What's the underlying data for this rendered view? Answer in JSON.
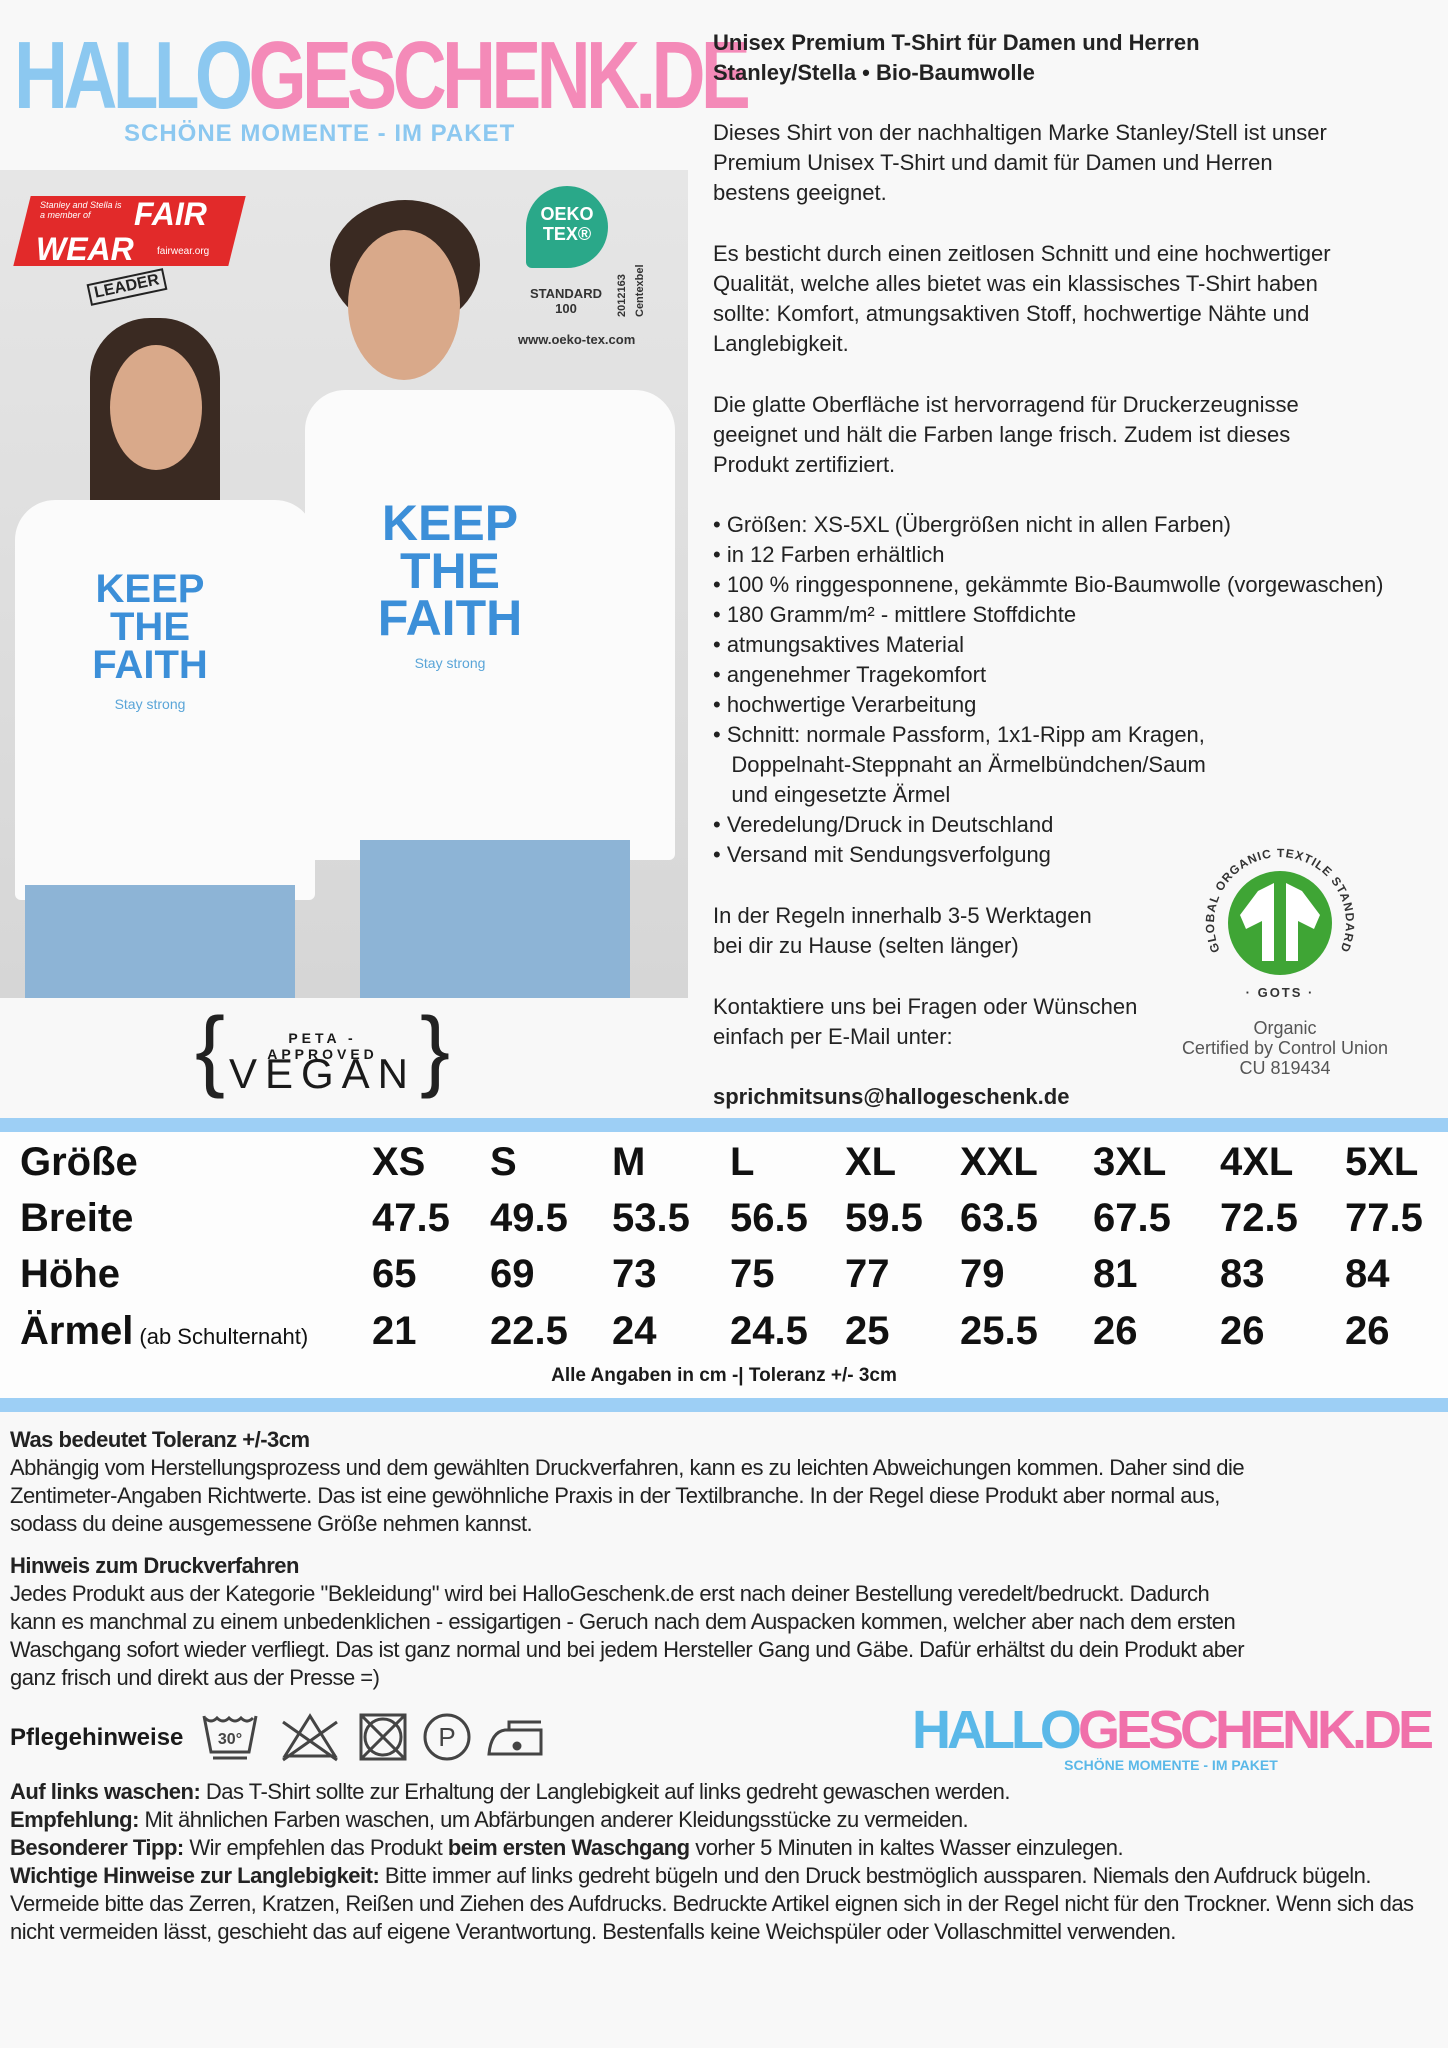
{
  "logo": {
    "part1": "HALLO",
    "part2": "GESCHENK.DE",
    "tagline": "SCHÖNE MOMENTE - IM PAKET"
  },
  "photo": {
    "fairwear": {
      "small": "Stanley and Stella is a member of",
      "fair": "FAIR",
      "wear": "WEAR",
      "url": "fairwear.org",
      "leader": "LEADER"
    },
    "oekotex": {
      "name": "OEKO TEX®",
      "standard": "STANDARD 100",
      "number": "2012163",
      "institute": "Centexbel",
      "url": "www.oeko-tex.com"
    },
    "shirt_print": {
      "line1": "KEEP",
      "line2": "THE",
      "line3": "FAITH",
      "sub": "Stay strong"
    }
  },
  "peta": {
    "top": "PETA - APPROVED",
    "main": "VEGAN"
  },
  "product": {
    "title1": "Unisex Premium T-Shirt für Damen und Herren",
    "title2": "Stanley/Stella  • Bio-Baumwolle",
    "p1": [
      "Dieses Shirt von der nachhaltigen Marke Stanley/Stell ist unser",
      "Premium Unisex T-Shirt und damit für Damen und Herren",
      "bestens geeignet."
    ],
    "p2": [
      "Es besticht durch einen zeitlosen Schnitt und eine hochwertiger",
      "Qualität, welche alles bietet was ein klassisches T-Shirt haben",
      "sollte: Komfort, atmungsaktiven Stoff, hochwertige Nähte und",
      "Langlebigkeit."
    ],
    "p3": [
      "Die glatte Oberfläche ist hervorragend für Druckerzeugnisse",
      "geeignet und hält die Farben lange frisch. Zudem ist dieses",
      "Produkt zertifiziert."
    ],
    "bullets": [
      "• Größen: XS-5XL (Übergrößen nicht in allen Farben)",
      "• in 12 Farben erhältlich",
      "• 100 % ringgesponnene, gekämmte Bio-Baumwolle (vorgewaschen)",
      "• 180 Gramm/m² - mittlere Stoffdichte",
      "• atmungsaktives Material",
      "• angenehmer Tragekomfort",
      "• hochwertige Verarbeitung",
      "• Schnitt: normale Passform, 1x1-Ripp am Kragen,",
      "   Doppelnaht-Steppnaht an Ärmelbündchen/Saum",
      "   und eingesetzte Ärmel",
      "• Veredelung/Druck in Deutschland",
      "• Versand mit Sendungsverfolgung"
    ],
    "delivery": [
      "In der Regeln innerhalb 3-5 Werktagen",
      "bei dir zu Hause (selten länger)"
    ],
    "contact": [
      "Kontaktiere uns bei Fragen oder Wünschen",
      "einfach per E-Mail unter:"
    ],
    "email": "sprichmitsuns@hallogeschenk.de"
  },
  "gots": {
    "ring": "GLOBAL ORGANIC TEXTILE STANDARD",
    "short": "GOTS",
    "cert": [
      "Organic",
      "Certified by Control Union",
      "CU 819434"
    ],
    "color": "#3fa535"
  },
  "size_table": {
    "rows": [
      {
        "label": "Größe",
        "values": [
          "XS",
          "S",
          "M",
          "L",
          "XL",
          "XXL",
          "3XL",
          "4XL",
          "5XL"
        ]
      },
      {
        "label": "Breite",
        "values": [
          "47.5",
          "49.5",
          "53.5",
          "56.5",
          "59.5",
          "63.5",
          "67.5",
          "72.5",
          "77.5"
        ]
      },
      {
        "label": "Höhe",
        "values": [
          "65",
          "69",
          "73",
          "75",
          "77",
          "79",
          "81",
          "83",
          "84"
        ]
      },
      {
        "label": "Ärmel",
        "note": "(ab Schulternaht)",
        "values": [
          "21",
          "22.5",
          "24",
          "24.5",
          "25",
          "25.5",
          "26",
          "26",
          "26"
        ]
      }
    ],
    "footnote": "Alle Angaben in cm -| Toleranz +/- 3cm"
  },
  "tolerance": {
    "heading": "Was bedeutet Toleranz +/-3cm",
    "lines": [
      "Abhängig vom Herstellungsprozess und dem gewählten Druckverfahren, kann es zu leichten Abweichungen kommen. Daher sind die",
      "Zentimeter-Angaben Richtwerte. Das ist eine gewöhnliche Praxis in der Textilbranche. In der Regel diese Produkt aber normal aus,",
      "sodass du deine ausgemessene Größe nehmen kannst."
    ]
  },
  "print": {
    "heading": "Hinweis zum Druckverfahren",
    "lines": [
      "Jedes Produkt aus der Kategorie \"Bekleidung\" wird bei HalloGeschenk.de erst nach deiner Bestellung veredelt/bedruckt. Dadurch",
      "kann es manchmal zu einem unbedenklichen - essigartigen - Geruch nach dem Auspacken kommen, welcher aber nach dem ersten",
      "Waschgang sofort wieder verfliegt. Das ist ganz normal und bei jedem Hersteller Gang und Gäbe. Dafür erhältst du dein Produkt aber",
      "ganz frisch und direkt aus der Presse =)"
    ]
  },
  "care": {
    "heading": "Pflegehinweise",
    "icons": [
      "wash-30-icon",
      "no-bleach-icon",
      "no-tumble-dry-icon",
      "dry-clean-p-icon",
      "iron-low-icon"
    ],
    "wash_temp": "30°",
    "dry_clean": "P"
  },
  "notes": {
    "n1_label": "Auf links waschen:",
    "n1": " Das T-Shirt sollte zur Erhaltung der Langlebigkeit auf links gedreht gewaschen werden.",
    "n2_label": "Empfehlung:",
    "n2": " Mit ähnlichen Farben waschen, um Abfärbungen anderer Kleidungsstücke zu vermeiden.",
    "n3_label": "Besonderer Tipp:",
    "n3a": " Wir empfehlen das Produkt ",
    "n3b": "beim ersten Waschgang",
    "n3c": " vorher 5 Minuten in kaltes Wasser einzulegen.",
    "n4_label": "Wichtige Hinweise zur Langlebigkeit:",
    "n4": " Bitte immer auf links gedreht bügeln und den Druck bestmöglich aussparen. Niemals den Aufdruck bügeln. Vermeide bitte das Zerren, Kratzen, Reißen und Ziehen des Aufdrucks. Bedruckte Artikel eignen sich in der Regel nicht für den Trockner. Wenn sich das nicht vermeiden lässt, geschieht das auf eigene Verantwortung. Bestenfalls keine Weichspüler oder Vollaschmittel verwenden."
  },
  "watermark": {
    "part1": "HALLO",
    "part2": "GESCHENK.DE",
    "tagline": "SCHÖNE MOMENTE - IM PAKET"
  }
}
